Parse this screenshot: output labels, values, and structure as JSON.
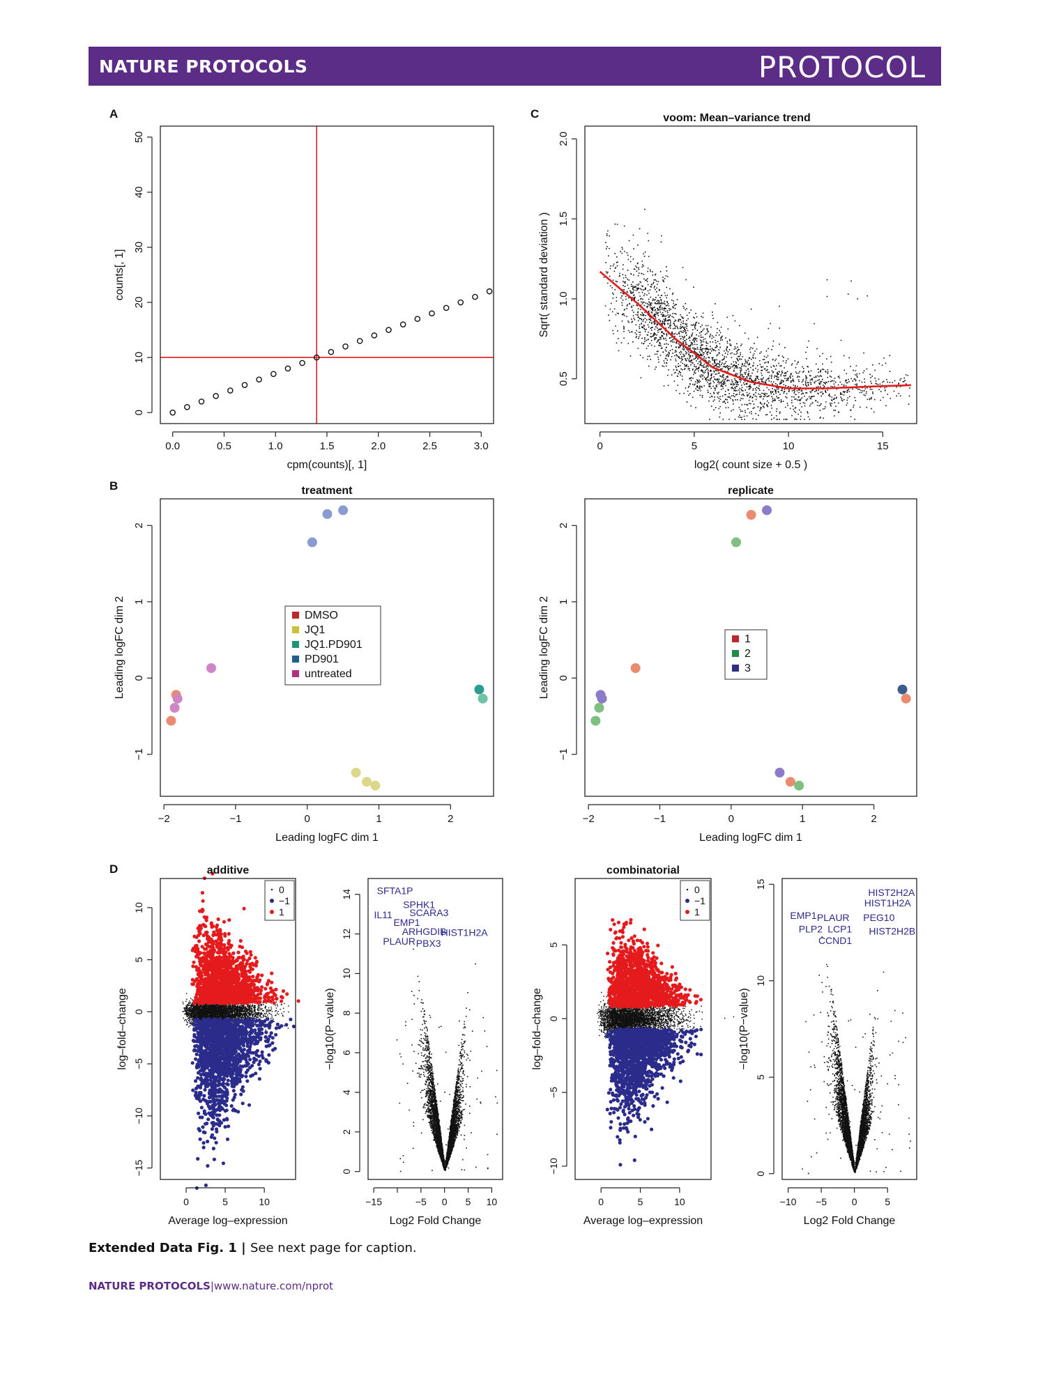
{
  "header": {
    "journal": "NATURE PROTOCOLS",
    "article_type": "PROTOCOL"
  },
  "panels": {
    "A": "A",
    "B": "B",
    "C": "C",
    "D": "D"
  },
  "caption": {
    "bold": "Extended Data Fig. 1 |",
    "text": "See next page for caption."
  },
  "footer": {
    "journal": "NATURE PROTOCOLS",
    "separator": "|",
    "url": "www.nature.com/nprot"
  },
  "colors": {
    "brand": "#5b2d86",
    "red": "#e41a1c",
    "blue": "#2b2b8c"
  },
  "chart_data": [
    {
      "id": "A",
      "type": "scatter",
      "title": "",
      "xlabel": "cpm(counts)[, 1]",
      "ylabel": "counts[, 1]",
      "xlim": [
        -0.12,
        3.12
      ],
      "ylim": [
        -2,
        52
      ],
      "xticks": [
        0.0,
        0.5,
        1.0,
        1.5,
        2.0,
        2.5,
        3.0
      ],
      "xtick_labels": [
        "0.0",
        "0.5",
        "1.0",
        "1.5",
        "2.0",
        "2.5",
        "3.0"
      ],
      "yticks": [
        0,
        10,
        20,
        30,
        40,
        50
      ],
      "ytick_labels": [
        "0",
        "10",
        "20",
        "30",
        "40",
        "50"
      ],
      "x": [
        0.0,
        0.14,
        0.28,
        0.42,
        0.56,
        0.7,
        0.84,
        0.98,
        1.12,
        1.26,
        1.4,
        1.54,
        1.68,
        1.82,
        1.96,
        2.1,
        2.24,
        2.38,
        2.52,
        2.66,
        2.8,
        2.94,
        3.08
      ],
      "y": [
        0,
        1,
        2,
        3,
        4,
        5,
        6,
        7,
        8,
        9,
        10,
        11,
        12,
        13,
        14,
        15,
        16,
        17,
        18,
        19,
        20,
        21,
        22
      ],
      "vline": 1.4,
      "hline": 10
    },
    {
      "id": "C",
      "type": "scatter",
      "title": "voom: Mean–variance trend",
      "xlabel": "log2( count size + 0.5 )",
      "ylabel": "Sqrt( standard deviation )",
      "xlim": [
        -0.8,
        16.8
      ],
      "ylim": [
        0.22,
        2.08
      ],
      "xticks": [
        0,
        5,
        10,
        15
      ],
      "xtick_labels": [
        "0",
        "5",
        "10",
        "15"
      ],
      "yticks": [
        0.5,
        1.0,
        1.5,
        2.0
      ],
      "ytick_labels": [
        "0.5",
        "1.0",
        "1.5",
        "2.0"
      ],
      "trend": {
        "x": [
          0,
          2,
          4,
          6,
          8,
          10,
          12,
          14,
          16.5
        ],
        "y": [
          1.17,
          0.97,
          0.75,
          0.57,
          0.48,
          0.44,
          0.44,
          0.45,
          0.46
        ]
      }
    },
    {
      "id": "B1",
      "type": "scatter",
      "title": "treatment",
      "xlabel": "Leading logFC dim 1",
      "ylabel": "Leading logFC dim 2",
      "xlim": [
        -2.05,
        2.6
      ],
      "ylim": [
        -1.55,
        2.35
      ],
      "xticks": [
        -2,
        -1,
        0,
        1,
        2
      ],
      "xtick_labels": [
        "−2",
        "−1",
        "0",
        "1",
        "2"
      ],
      "yticks": [
        -1,
        0,
        1,
        2
      ],
      "ytick_labels": [
        "−1",
        "0",
        "1",
        "2"
      ],
      "legend": [
        "DMSO",
        "JQ1",
        "JQ1.PD901",
        "PD901",
        "untreated"
      ],
      "legend_colors": [
        "#c0272d",
        "#c9c13a",
        "#1f9579",
        "#1f5d8c",
        "#b0307e"
      ],
      "points": [
        {
          "x": 0.5,
          "y": 2.2,
          "c": "#8b9bd2"
        },
        {
          "x": 0.28,
          "y": 2.15,
          "c": "#8b9bd2"
        },
        {
          "x": 0.07,
          "y": 1.78,
          "c": "#8b9bd2"
        },
        {
          "x": -1.34,
          "y": 0.13,
          "c": "#cf86c4"
        },
        {
          "x": -1.83,
          "y": -0.22,
          "c": "#ea8a6e"
        },
        {
          "x": -1.81,
          "y": -0.27,
          "c": "#cf86c4"
        },
        {
          "x": -1.85,
          "y": -0.39,
          "c": "#cf86c4"
        },
        {
          "x": -1.9,
          "y": -0.56,
          "c": "#ea8a6e"
        },
        {
          "x": 2.4,
          "y": -0.15,
          "c": "#2a9d8f"
        },
        {
          "x": 2.45,
          "y": -0.27,
          "c": "#6cc4a4"
        },
        {
          "x": 0.68,
          "y": -1.24,
          "c": "#dcd88a"
        },
        {
          "x": 0.83,
          "y": -1.36,
          "c": "#dcd88a"
        },
        {
          "x": 0.95,
          "y": -1.41,
          "c": "#dcd88a"
        }
      ]
    },
    {
      "id": "B2",
      "type": "scatter",
      "title": "replicate",
      "xlabel": "Leading logFC dim 1",
      "ylabel": "Leading logFC dim 2",
      "xlim": [
        -2.05,
        2.6
      ],
      "ylim": [
        -1.55,
        2.35
      ],
      "xticks": [
        -2,
        -1,
        0,
        1,
        2
      ],
      "xtick_labels": [
        "−2",
        "−1",
        "0",
        "1",
        "2"
      ],
      "yticks": [
        -1,
        0,
        1,
        2
      ],
      "ytick_labels": [
        "−1",
        "0",
        "1",
        "2"
      ],
      "legend": [
        "1",
        "2",
        "3"
      ],
      "legend_colors": [
        "#c0272d",
        "#1f8a4a",
        "#2e2e86"
      ],
      "points": [
        {
          "x": 0.5,
          "y": 2.2,
          "c": "#8b7bc8"
        },
        {
          "x": 0.28,
          "y": 2.14,
          "c": "#ea8a6e"
        },
        {
          "x": 0.07,
          "y": 1.78,
          "c": "#7fbf7f"
        },
        {
          "x": -1.34,
          "y": 0.13,
          "c": "#ea8a6e"
        },
        {
          "x": -1.83,
          "y": -0.22,
          "c": "#8b7bc8"
        },
        {
          "x": -1.81,
          "y": -0.27,
          "c": "#8b7bc8"
        },
        {
          "x": -1.85,
          "y": -0.39,
          "c": "#7fbf7f"
        },
        {
          "x": -1.9,
          "y": -0.56,
          "c": "#7fbf7f"
        },
        {
          "x": 2.4,
          "y": -0.15,
          "c": "#3b5c8c"
        },
        {
          "x": 2.45,
          "y": -0.27,
          "c": "#ea8a6e"
        },
        {
          "x": 0.68,
          "y": -1.24,
          "c": "#8b7bc8"
        },
        {
          "x": 0.83,
          "y": -1.36,
          "c": "#ea8a6e"
        },
        {
          "x": 0.95,
          "y": -1.41,
          "c": "#7fbf7f"
        }
      ]
    },
    {
      "id": "D1",
      "type": "scatter",
      "title": "additive",
      "xlabel": "Average log–expression",
      "ylabel": "log–fold–change",
      "xlim": [
        -3.3,
        14.0
      ],
      "ylim": [
        -16.1,
        12.8
      ],
      "xticks": [
        0,
        5,
        10
      ],
      "xtick_labels": [
        "0",
        "5",
        "10"
      ],
      "yticks": [
        -15,
        -10,
        -5,
        0,
        5,
        10
      ],
      "ytick_labels": [
        "−15",
        "−10",
        "−5",
        "0",
        "5",
        "10"
      ],
      "legend": [
        "0",
        "−1",
        "1"
      ]
    },
    {
      "id": "D2",
      "type": "scatter",
      "title": "",
      "xlabel": "Log2 Fold Change",
      "ylabel": "−log10(P−value)",
      "xlim": [
        -16.2,
        12.3
      ],
      "ylim": [
        -0.4,
        14.8
      ],
      "xticks": [
        -15,
        -10,
        -5,
        0,
        5,
        10
      ],
      "xtick_labels": [
        "−15",
        "",
        "−5",
        "0",
        "5",
        "10"
      ],
      "yticks": [
        0,
        2,
        4,
        6,
        8,
        10,
        12,
        14
      ],
      "ytick_labels": [
        "0",
        "2",
        "4",
        "6",
        "8",
        "10",
        "12",
        "14"
      ],
      "gene_labels": [
        "SFTA1P",
        "SPHK1",
        "SCARA3",
        "IL11",
        "EMP1",
        "ARHGDIB",
        "HIST1H2A",
        "PLAUR",
        "PBX3"
      ]
    },
    {
      "id": "D3",
      "type": "scatter",
      "title": "combinatorial",
      "xlabel": "Average log–expression",
      "ylabel": "log–fold–change",
      "xlim": [
        -3.3,
        14.0
      ],
      "ylim": [
        -10.9,
        9.5
      ],
      "xticks": [
        0,
        5,
        10
      ],
      "xtick_labels": [
        "0",
        "5",
        "10"
      ],
      "yticks": [
        -10,
        -5,
        0,
        5
      ],
      "ytick_labels": [
        "−10",
        "−5",
        "0",
        "5"
      ],
      "legend": [
        "0",
        "−1",
        "1"
      ]
    },
    {
      "id": "D4",
      "type": "scatter",
      "title": "",
      "xlabel": "Log2 Fold Change",
      "ylabel": "−log10(P−value)",
      "xlim": [
        -10.9,
        9.4
      ],
      "ylim": [
        -0.3,
        15.3
      ],
      "xticks": [
        -10,
        -5,
        0,
        5
      ],
      "xtick_labels": [
        "−10",
        "−5",
        "0",
        "5"
      ],
      "yticks": [
        0,
        5,
        10,
        15
      ],
      "ytick_labels": [
        "0",
        "5",
        "10",
        "15"
      ],
      "gene_labels": [
        "HIST2H2A",
        "HIST1H2A",
        "EMP1",
        "PLAUR",
        "PEG10",
        "PLP2",
        "LCP1",
        "CCND1",
        "HIST2H2B"
      ]
    }
  ]
}
